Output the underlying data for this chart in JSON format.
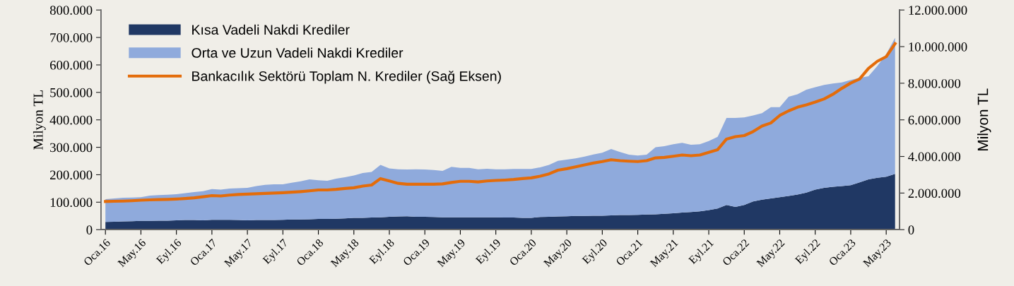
{
  "chart_data": {
    "type": "area",
    "stacked": true,
    "ylabel": "Milyon TL",
    "y2label": "Milyon TL",
    "legend": "top left",
    "grid": false,
    "categories": [
      "Oca.16",
      null,
      null,
      null,
      "May.16",
      null,
      null,
      null,
      "Eyl.16",
      null,
      null,
      null,
      "Oca.17",
      null,
      null,
      null,
      "May.17",
      null,
      null,
      null,
      "Eyl.17",
      null,
      null,
      null,
      "Oca.18",
      null,
      null,
      null,
      "May.18",
      null,
      null,
      null,
      "Eyl.18",
      null,
      null,
      null,
      "Oca.19",
      null,
      null,
      null,
      "May.19",
      null,
      null,
      null,
      "Eyl.19",
      null,
      null,
      null,
      "Oca.20",
      null,
      null,
      null,
      "May.20",
      null,
      null,
      null,
      "Eyl.20",
      null,
      null,
      null,
      "Oca.21",
      null,
      null,
      null,
      "May.21",
      null,
      null,
      null,
      "Eyl.21",
      null,
      null,
      null,
      "Oca.22",
      null,
      null,
      null,
      "May.22",
      null,
      null,
      null,
      "Eyl.22",
      null,
      null,
      null,
      "Oca.23",
      null,
      null,
      null,
      "May.23",
      null
    ],
    "ylim": [
      0,
      800000
    ],
    "yticks": [
      0,
      {
        "value": 100000,
        "label": "100.000"
      },
      {
        "value": 200000,
        "label": "200.000"
      },
      {
        "value": 300000,
        "label": "300.000"
      },
      {
        "value": 400000,
        "label": "400.000"
      },
      {
        "value": 500000,
        "label": "500.000"
      },
      {
        "value": 600000,
        "label": "600.000"
      },
      {
        "value": 700000,
        "label": "700.000"
      },
      {
        "value": 800000,
        "label": "800.000"
      }
    ],
    "y2lim": [
      0,
      12000000
    ],
    "y2ticks": [
      0,
      {
        "value": 2000000,
        "label": "2.000.000"
      },
      {
        "value": 4000000,
        "label": "4.000.000"
      },
      {
        "value": 6000000,
        "label": "6.000.000"
      },
      {
        "value": 8000000,
        "label": "8.000.000"
      },
      {
        "value": 10000000,
        "label": "10.000.000"
      },
      {
        "value": 12000000,
        "label": "12.000.000"
      }
    ],
    "series": [
      {
        "name": "Kısa Vadeli Nakdi Krediler",
        "color": "#203864",
        "values": [
          28000,
          29000,
          30000,
          31000,
          32000,
          32000,
          33000,
          33000,
          34000,
          35000,
          35000,
          34000,
          36000,
          36000,
          36000,
          35000,
          34000,
          35000,
          35000,
          35000,
          36000,
          37000,
          37000,
          38000,
          39000,
          39000,
          40000,
          41000,
          43000,
          43000,
          44000,
          45000,
          47000,
          48000,
          49000,
          47000,
          47000,
          46000,
          45000,
          45000,
          45000,
          45000,
          45000,
          45000,
          45000,
          44000,
          44000,
          43000,
          43000,
          46000,
          47000,
          48000,
          49000,
          50000,
          50000,
          51000,
          51000,
          52000,
          53000,
          53000,
          54000,
          55000,
          56000,
          58000,
          60000,
          62000,
          64000,
          67000,
          71000,
          77000,
          90000,
          83000,
          90000,
          103000,
          109000,
          114000,
          118000,
          123000,
          128000,
          135000,
          146000,
          152000,
          156000,
          159000,
          162000,
          172000,
          183000,
          189000,
          193000,
          203000
        ]
      },
      {
        "name": "Orta ve Uzun Vadeli Nakdi Krediler",
        "color": "#8faadc",
        "values": [
          83000,
          85000,
          86000,
          86000,
          86000,
          92000,
          93000,
          94000,
          95000,
          98000,
          102000,
          106000,
          112000,
          110000,
          114000,
          116000,
          118000,
          124000,
          128000,
          130000,
          129000,
          134000,
          139000,
          145000,
          141000,
          139000,
          146000,
          150000,
          154000,
          163000,
          166000,
          191000,
          176000,
          172000,
          170000,
          173000,
          172000,
          171000,
          169000,
          184000,
          180000,
          180000,
          175000,
          177000,
          175000,
          176000,
          177000,
          178000,
          178000,
          181000,
          189000,
          203000,
          206000,
          210000,
          216000,
          223000,
          229000,
          242000,
          230000,
          220000,
          216000,
          218000,
          244000,
          246000,
          251000,
          254000,
          245000,
          244000,
          252000,
          261000,
          317000,
          324000,
          319000,
          313000,
          315000,
          332000,
          328000,
          361000,
          365000,
          375000,
          373000,
          375000,
          376000,
          377000,
          383000,
          381000,
          376000,
          407000,
          446000,
          496000
        ]
      },
      {
        "name": "Bankacılık Sektörü Toplam N. Krediler (Sağ Eksen)",
        "type": "line",
        "axis": "y2",
        "color": "#e46c0a",
        "values": [
          1540000,
          1550000,
          1560000,
          1580000,
          1610000,
          1630000,
          1640000,
          1650000,
          1670000,
          1700000,
          1740000,
          1800000,
          1860000,
          1840000,
          1890000,
          1920000,
          1940000,
          1960000,
          1980000,
          2000000,
          2020000,
          2050000,
          2080000,
          2120000,
          2170000,
          2170000,
          2200000,
          2250000,
          2290000,
          2380000,
          2440000,
          2790000,
          2660000,
          2530000,
          2480000,
          2480000,
          2480000,
          2480000,
          2500000,
          2580000,
          2640000,
          2640000,
          2610000,
          2660000,
          2690000,
          2710000,
          2740000,
          2790000,
          2830000,
          2920000,
          3050000,
          3250000,
          3330000,
          3430000,
          3540000,
          3640000,
          3720000,
          3820000,
          3770000,
          3740000,
          3720000,
          3770000,
          3920000,
          3950000,
          4010000,
          4080000,
          4040000,
          4080000,
          4220000,
          4370000,
          4950000,
          5080000,
          5140000,
          5360000,
          5660000,
          5830000,
          6240000,
          6490000,
          6690000,
          6820000,
          6970000,
          7140000,
          7400000,
          7720000,
          8010000,
          8230000,
          8810000,
          9200000,
          9450000,
          10160000
        ]
      }
    ]
  }
}
